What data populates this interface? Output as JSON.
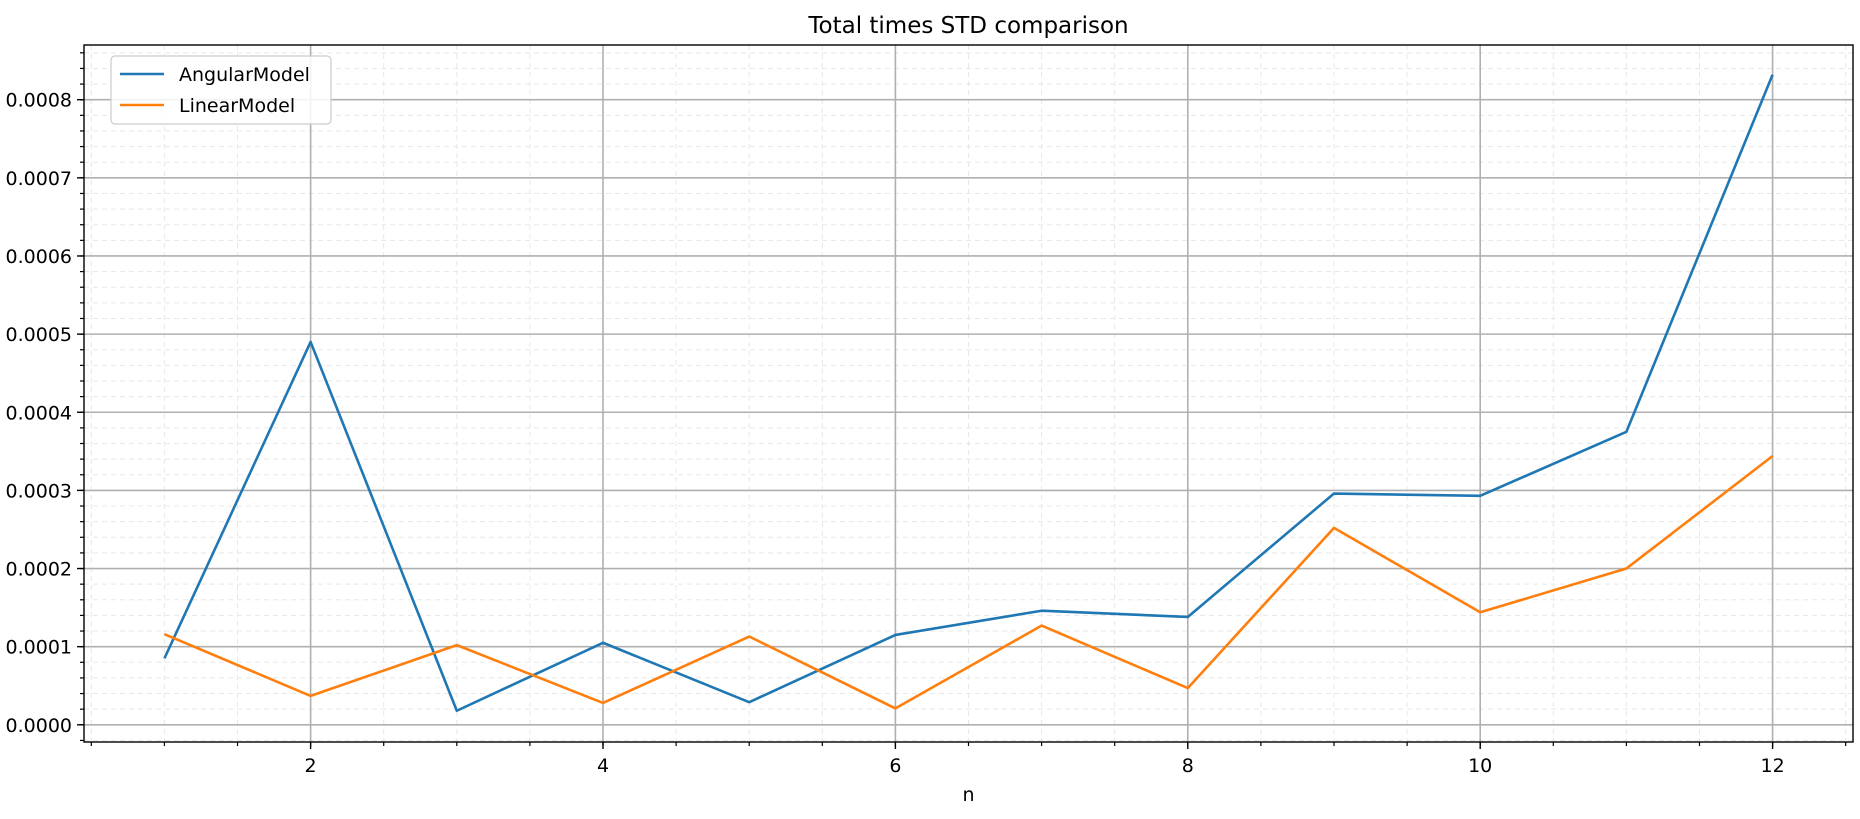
{
  "chart_data": {
    "type": "line",
    "title": "Total times STD comparison",
    "xlabel": "n",
    "ylabel": "",
    "x": [
      1,
      2,
      3,
      4,
      5,
      6,
      7,
      8,
      9,
      10,
      11,
      12
    ],
    "xlim": [
      0.45,
      12.55
    ],
    "ylim": [
      -2.2e-05,
      0.00087
    ],
    "xticks": [
      2,
      4,
      6,
      8,
      10,
      12
    ],
    "xtick_labels": [
      "2",
      "4",
      "6",
      "8",
      "10",
      "12"
    ],
    "yticks": [
      0,
      0.0001,
      0.0002,
      0.0003,
      0.0004,
      0.0005,
      0.0006,
      0.0007,
      0.0008
    ],
    "ytick_labels": [
      "0.0000",
      "0.0001",
      "0.0002",
      "0.0003",
      "0.0004",
      "0.0005",
      "0.0006",
      "0.0007",
      "0.0008"
    ],
    "grid": true,
    "minor_grid": true,
    "legend_position": "top-left",
    "series": [
      {
        "name": "AngularModel",
        "color": "#1f77b4",
        "values": [
          8.5e-05,
          0.00049,
          1.8e-05,
          0.000105,
          2.9e-05,
          0.000115,
          0.000146,
          0.000138,
          0.000296,
          0.000293,
          0.000375,
          0.000832
        ]
      },
      {
        "name": "LinearModel",
        "color": "#ff7f0e",
        "values": [
          0.000116,
          3.7e-05,
          0.000102,
          2.8e-05,
          0.000113,
          2.1e-05,
          0.000127,
          4.7e-05,
          0.000252,
          0.000144,
          0.0002,
          0.000344
        ]
      }
    ]
  }
}
